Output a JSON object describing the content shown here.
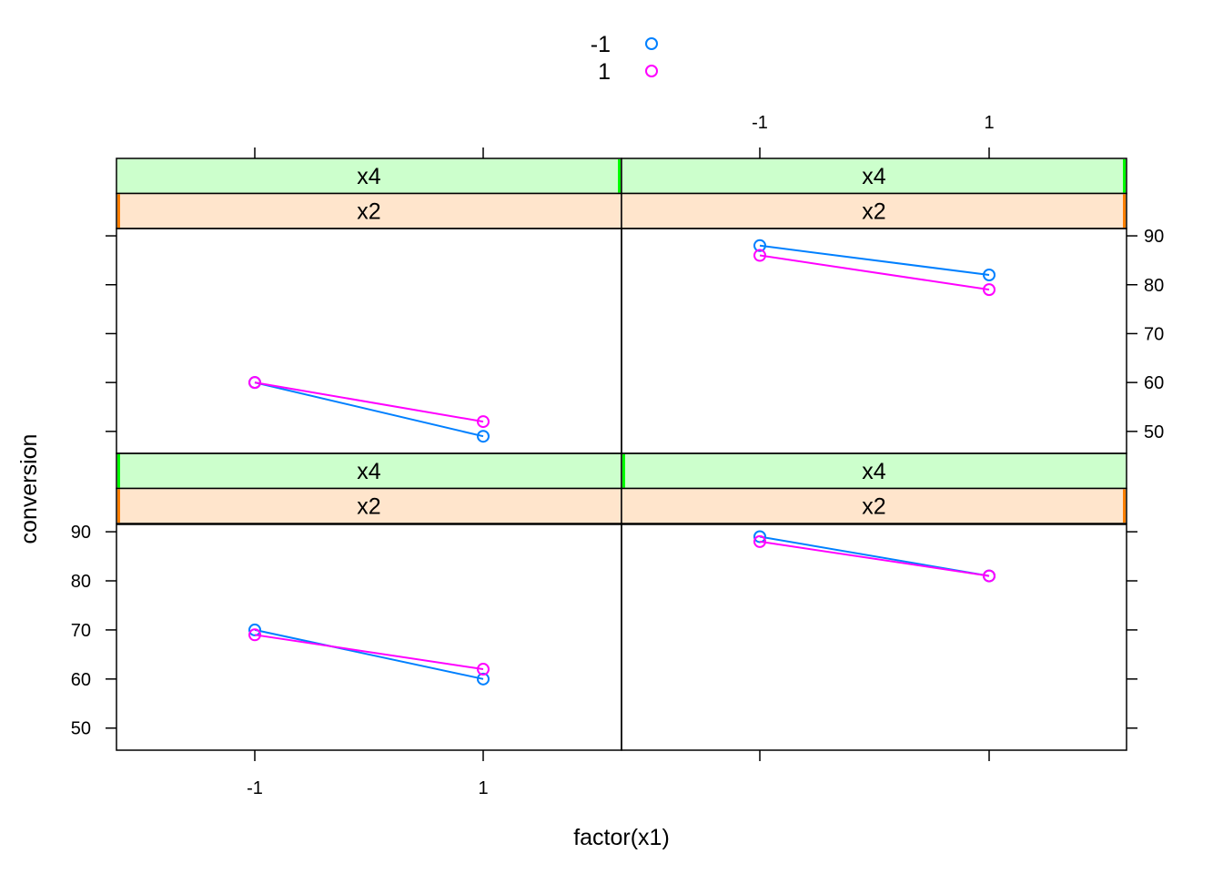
{
  "chart_data": {
    "type": "line",
    "xlabel": "factor(x1)",
    "ylabel": "conversion",
    "x_categories": [
      "-1",
      "1"
    ],
    "y_ticks": [
      50,
      60,
      70,
      80,
      90
    ],
    "ylim": [
      45.5,
      91.5
    ],
    "grid": false,
    "legend": {
      "placement": "top",
      "entries": [
        {
          "label": "-1",
          "color": "#0080ff"
        },
        {
          "label": "1",
          "color": "#ff00ff"
        }
      ]
    },
    "strip_colors": {
      "x4": "#ccffcc",
      "x2": "#ffe5cc",
      "x4_marker": "#00ff00",
      "x2_marker": "#ff7f00"
    },
    "panels": [
      {
        "id": "bottom-left",
        "strips": [
          "x4",
          "x2"
        ],
        "series": [
          {
            "legend": "-1",
            "values": [
              70,
              60
            ]
          },
          {
            "legend": "1",
            "values": [
              69,
              62
            ]
          }
        ]
      },
      {
        "id": "bottom-right",
        "strips": [
          "x4",
          "x2"
        ],
        "series": [
          {
            "legend": "-1",
            "values": [
              89,
              81
            ]
          },
          {
            "legend": "1",
            "values": [
              88,
              81
            ]
          }
        ]
      },
      {
        "id": "top-left",
        "strips": [
          "x4",
          "x2"
        ],
        "series": [
          {
            "legend": "-1",
            "values": [
              60,
              49
            ]
          },
          {
            "legend": "1",
            "values": [
              60,
              52
            ]
          }
        ]
      },
      {
        "id": "top-right",
        "strips": [
          "x4",
          "x2"
        ],
        "series": [
          {
            "legend": "-1",
            "values": [
              88,
              82
            ]
          },
          {
            "legend": "1",
            "values": [
              86,
              79
            ]
          }
        ]
      }
    ]
  }
}
